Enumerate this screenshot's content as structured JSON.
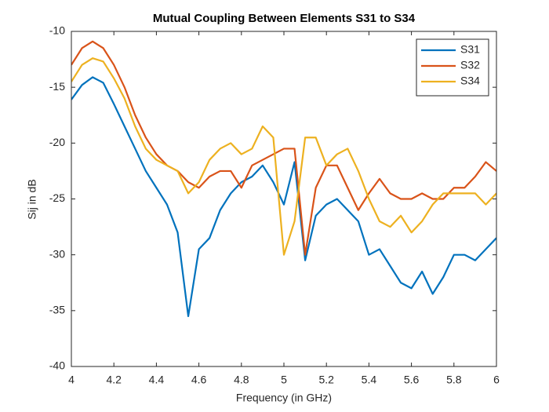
{
  "chart_data": {
    "type": "line",
    "title": "Mutual Coupling Between Elements S31 to S34",
    "xlabel": "Frequency (in GHz)",
    "ylabel": "Sij in dB",
    "x": [
      4.0,
      4.05,
      4.1,
      4.15,
      4.2,
      4.25,
      4.3,
      4.35,
      4.4,
      4.45,
      4.5,
      4.55,
      4.6,
      4.65,
      4.7,
      4.75,
      4.8,
      4.85,
      4.9,
      4.95,
      5.0,
      5.05,
      5.1,
      5.15,
      5.2,
      5.25,
      5.3,
      5.35,
      5.4,
      5.45,
      5.5,
      5.55,
      5.6,
      5.65,
      5.7,
      5.75,
      5.8,
      5.85,
      5.9,
      5.95,
      6.0
    ],
    "series": [
      {
        "name": "S31",
        "color": "#0072BD",
        "values": [
          -16.1,
          -14.8,
          -14.1,
          -14.6,
          -16.5,
          -18.5,
          -20.5,
          -22.5,
          -24.0,
          -25.5,
          -28.0,
          -35.5,
          -29.5,
          -28.5,
          -26.0,
          -24.5,
          -23.5,
          -23.0,
          -22.0,
          -23.5,
          -25.5,
          -21.7,
          -30.5,
          -26.5,
          -25.5,
          -25.0,
          -26.0,
          -27.0,
          -30.0,
          -29.5,
          -31.0,
          -32.5,
          -33.0,
          -31.5,
          -33.5,
          -32.0,
          -30.0,
          -30.0,
          -30.5,
          -29.5,
          -28.5
        ]
      },
      {
        "name": "S32",
        "color": "#D95319",
        "values": [
          -13.0,
          -11.5,
          -10.9,
          -11.5,
          -13.0,
          -15.0,
          -17.5,
          -19.5,
          -21.0,
          -22.0,
          -22.5,
          -23.5,
          -24.0,
          -23.0,
          -22.5,
          -22.5,
          -24.0,
          -22.0,
          -21.5,
          -21.0,
          -20.5,
          -20.5,
          -30.0,
          -24.0,
          -22.0,
          -22.0,
          -24.0,
          -26.0,
          -24.5,
          -23.2,
          -24.5,
          -25.0,
          -25.0,
          -24.5,
          -25.0,
          -25.0,
          -24.0,
          -24.0,
          -23.0,
          -21.7,
          -22.5
        ]
      },
      {
        "name": "S34",
        "color": "#EDB120",
        "values": [
          -14.5,
          -13.0,
          -12.4,
          -12.7,
          -14.2,
          -16.0,
          -18.5,
          -20.5,
          -21.5,
          -22.0,
          -22.5,
          -24.5,
          -23.5,
          -21.5,
          -20.5,
          -20.0,
          -21.0,
          -20.5,
          -18.5,
          -19.5,
          -30.0,
          -27.0,
          -19.5,
          -19.5,
          -22.0,
          -21.0,
          -20.5,
          -22.5,
          -25.0,
          -27.0,
          -27.5,
          -26.5,
          -28.0,
          -27.0,
          -25.5,
          -24.5,
          -24.5,
          -24.5,
          -24.5,
          -25.5,
          -24.5
        ]
      }
    ],
    "xlim": [
      4,
      6
    ],
    "xticks": [
      4,
      4.2,
      4.4,
      4.6,
      4.8,
      5,
      5.2,
      5.4,
      5.6,
      5.8,
      6
    ],
    "ylim": [
      -40,
      -10
    ],
    "yticks": [
      -40,
      -35,
      -30,
      -25,
      -20,
      -15,
      -10
    ],
    "grid": false,
    "legend": "northeast"
  }
}
